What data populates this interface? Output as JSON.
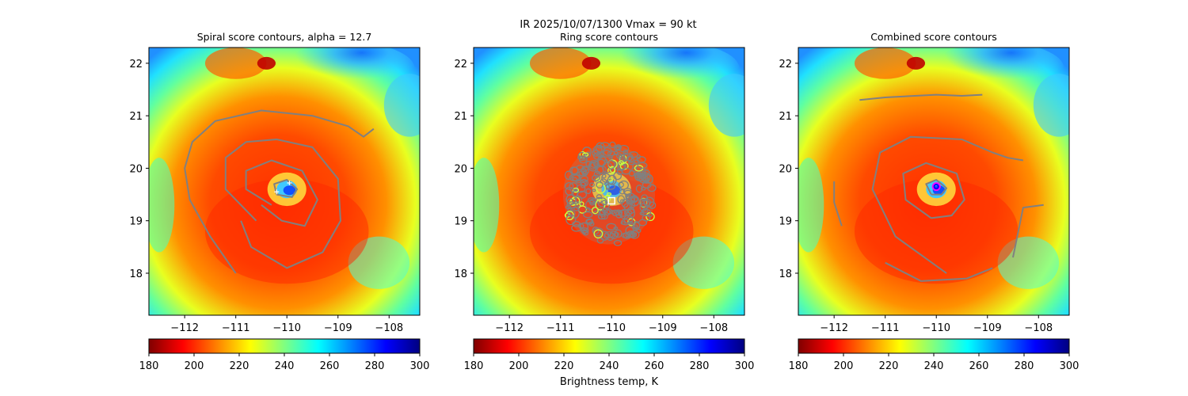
{
  "suptitle": "IR  2025/10/07/1300    Vmax = 90 kt",
  "colorbar": {
    "label": "Brightness temp, K",
    "ticks": [
      "180",
      "200",
      "220",
      "240",
      "260",
      "280",
      "300"
    ],
    "range": [
      180,
      300
    ],
    "colormap": "jet_r",
    "stops": [
      "#800000",
      "#ff0000",
      "#ff8000",
      "#ffff00",
      "#80ff80",
      "#00ffff",
      "#0080ff",
      "#0000ff",
      "#000080"
    ]
  },
  "contour_color": "#808080",
  "chart_data": [
    {
      "type": "heatmap",
      "title": "Spiral score contours, alpha = 12.7",
      "xlabel": "",
      "ylabel": "",
      "xlim": [
        -112.7,
        -107.4
      ],
      "ylim": [
        17.2,
        22.3
      ],
      "xticks": [
        -112,
        -111,
        -110,
        -109,
        -108
      ],
      "xtick_labels": [
        "−112",
        "−111",
        "−110",
        "−109",
        "−108"
      ],
      "yticks": [
        18,
        19,
        20,
        21,
        22
      ],
      "ytick_labels": [
        "18",
        "19",
        "20",
        "21",
        "22"
      ],
      "storm_center": [
        -110.0,
        19.6
      ],
      "eye_radius_deg": 0.12,
      "contours": [
        {
          "lon": [
            -111.0,
            -111.5,
            -111.9,
            -112.0,
            -111.85,
            -111.4,
            -110.5,
            -109.5,
            -108.8,
            -108.5,
            -108.3
          ],
          "lat": [
            18.0,
            18.7,
            19.4,
            20.0,
            20.5,
            20.9,
            21.1,
            21.0,
            20.8,
            20.6,
            20.75
          ]
        },
        {
          "lon": [
            -110.6,
            -111.2,
            -111.2,
            -110.8,
            -110.2,
            -109.5,
            -109.0,
            -108.95,
            -109.3,
            -110.0,
            -110.7,
            -110.9
          ],
          "lat": [
            19.0,
            19.6,
            20.2,
            20.5,
            20.55,
            20.4,
            19.8,
            19.0,
            18.4,
            18.1,
            18.5,
            19.0
          ]
        },
        {
          "lon": [
            -110.3,
            -110.8,
            -110.8,
            -110.3,
            -109.7,
            -109.4,
            -109.65,
            -110.1,
            -110.5
          ],
          "lat": [
            19.3,
            19.6,
            19.95,
            20.15,
            19.95,
            19.4,
            18.9,
            19.0,
            19.3
          ]
        },
        {
          "lon": [
            -110.2,
            -110.25,
            -110.0,
            -109.8,
            -109.9,
            -110.2
          ],
          "lat": [
            19.5,
            19.7,
            19.78,
            19.6,
            19.45,
            19.5
          ]
        }
      ],
      "cross_markers": [
        [
          -109.95,
          19.72
        ],
        [
          -110.2,
          19.55
        ]
      ]
    },
    {
      "type": "heatmap",
      "title": "Ring score contours",
      "xlabel": "",
      "ylabel": "",
      "xlim": [
        -112.7,
        -107.4
      ],
      "ylim": [
        17.2,
        22.3
      ],
      "xticks": [
        -112,
        -111,
        -110,
        -109,
        -108
      ],
      "xtick_labels": [
        "−112",
        "−111",
        "−110",
        "−109",
        "−108"
      ],
      "yticks": [
        18,
        19,
        20,
        21,
        22
      ],
      "ytick_labels": [
        "18",
        "19",
        "20",
        "21",
        "22"
      ],
      "storm_center": [
        -110.0,
        19.6
      ],
      "eye_radius_deg": 0.12,
      "ring_region": {
        "center": [
          -110.05,
          19.5
        ],
        "rx": 0.9,
        "ry": 0.95
      },
      "square_marker": [
        -110.0,
        19.38
      ]
    },
    {
      "type": "heatmap",
      "title": "Combined score contours",
      "xlabel": "",
      "ylabel": "",
      "xlim": [
        -112.7,
        -107.4
      ],
      "ylim": [
        17.2,
        22.3
      ],
      "xticks": [
        -112,
        -111,
        -110,
        -109,
        -108
      ],
      "xtick_labels": [
        "−112",
        "−111",
        "−110",
        "−109",
        "−108"
      ],
      "yticks": [
        18,
        19,
        20,
        21,
        22
      ],
      "ytick_labels": [
        "18",
        "19",
        "20",
        "21",
        "22"
      ],
      "storm_center": [
        -110.0,
        19.6
      ],
      "eye_radius_deg": 0.12,
      "contours": [
        {
          "lon": [
            -111.5,
            -111.0,
            -110.0,
            -109.5,
            -109.1
          ],
          "lat": [
            21.3,
            21.35,
            21.4,
            21.38,
            21.4
          ]
        },
        {
          "lon": [
            -109.8,
            -110.8,
            -111.25,
            -111.1,
            -110.5,
            -109.5,
            -108.9,
            -108.6,
            -108.3
          ],
          "lat": [
            18.0,
            18.7,
            19.6,
            20.3,
            20.6,
            20.55,
            20.3,
            20.2,
            20.15
          ]
        },
        {
          "lon": [
            -110.1,
            -110.6,
            -110.65,
            -110.2,
            -109.6,
            -109.45,
            -109.7,
            -110.1
          ],
          "lat": [
            19.05,
            19.4,
            19.9,
            20.1,
            19.9,
            19.4,
            19.1,
            19.05
          ]
        },
        {
          "lon": [
            -112.0,
            -112.0,
            -111.85
          ],
          "lat": [
            19.75,
            19.35,
            18.9
          ]
        },
        {
          "lon": [
            -108.5,
            -108.3,
            -107.9
          ],
          "lat": [
            18.3,
            19.25,
            19.3
          ]
        },
        {
          "lon": [
            -111.0,
            -110.3,
            -109.4,
            -108.9
          ],
          "lat": [
            18.2,
            17.85,
            17.9,
            18.1
          ]
        },
        {
          "lon": [
            -110.1,
            -110.2,
            -110.0,
            -109.8,
            -109.9,
            -110.1
          ],
          "lat": [
            19.5,
            19.7,
            19.78,
            19.62,
            19.5,
            19.5
          ]
        }
      ],
      "circle_markers": [
        {
          "center": [
            -110.0,
            19.65
          ],
          "radius_deg": 0.07,
          "color": "#ff00ff"
        },
        {
          "center": [
            -110.0,
            19.65
          ],
          "radius_deg": 0.04,
          "color": "#0000ff"
        }
      ]
    }
  ]
}
